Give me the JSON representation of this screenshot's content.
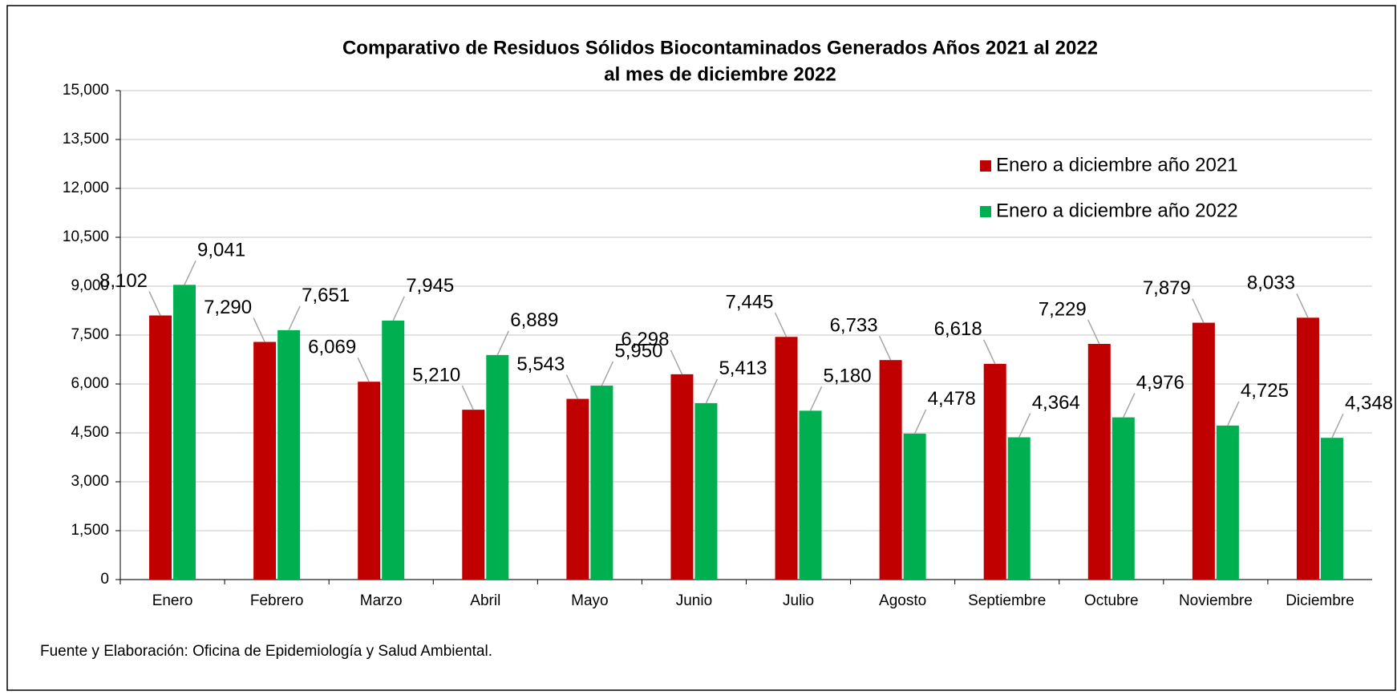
{
  "chart_data": {
    "type": "bar",
    "title": [
      "Comparativo de Residuos Sólidos Biocontaminados Generados Años 2021 al 2022",
      "al mes de diciembre 2022"
    ],
    "categories": [
      "Enero",
      "Febrero",
      "Marzo",
      "Abril",
      "Mayo",
      "Junio",
      "Julio",
      "Agosto",
      "Septiembre",
      "Octubre",
      "Noviembre",
      "Diciembre"
    ],
    "series": [
      {
        "name": "Enero a diciembre año 2021",
        "color": "#c00000",
        "values": [
          8102,
          7290,
          6069,
          5210,
          5543,
          6298,
          7445,
          6733,
          6618,
          7229,
          7879,
          8033
        ],
        "value_labels": [
          "8,102",
          "7,290",
          "6,069",
          "5,210",
          "5,543",
          "6,298",
          "7,445",
          "6,733",
          "6,618",
          "7,229",
          "7,879",
          "8,033"
        ]
      },
      {
        "name": "Enero a diciembre año 2022",
        "color": "#00b050",
        "values": [
          9041,
          7651,
          7945,
          6889,
          5950,
          5413,
          5180,
          4478,
          4364,
          4976,
          4725,
          4348
        ],
        "value_labels": [
          "9,041",
          "7,651",
          "7,945",
          "6,889",
          "5,950",
          "5,413",
          "5,180",
          "4,478",
          "4,364",
          "4,976",
          "4,725",
          "4,348"
        ]
      }
    ],
    "ylim": [
      0,
      15000
    ],
    "yticks": [
      0,
      {
        "value": 1500,
        "label": "1,500"
      },
      {
        "value": 3000,
        "label": "3,000"
      },
      {
        "value": 4500,
        "label": "4,500"
      },
      {
        "value": 6000,
        "label": "6,000"
      },
      {
        "value": 7500,
        "label": "7,500"
      },
      {
        "value": 9000,
        "label": "9,000"
      },
      {
        "value": 10500,
        "label": "10,500"
      },
      {
        "value": 12000,
        "label": "12,000"
      },
      {
        "value": 13500,
        "label": "13,500"
      },
      {
        "value": 15000,
        "label": "15,000"
      }
    ],
    "grid": true,
    "legend": "upper right",
    "source": "Fuente y Elaboración: Oficina de Epidemiología y Salud Ambiental."
  }
}
